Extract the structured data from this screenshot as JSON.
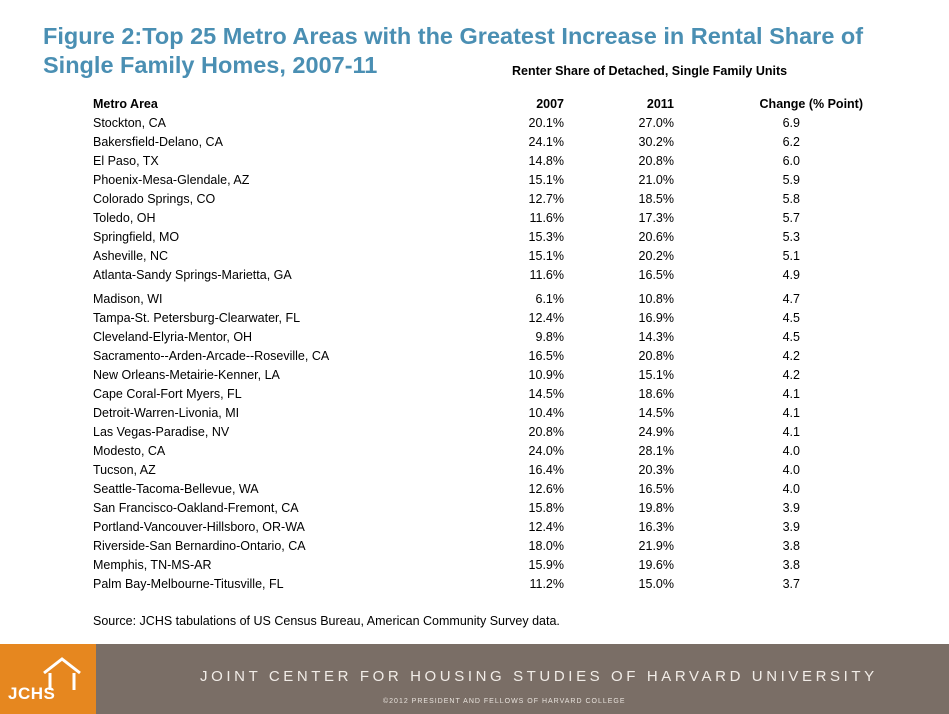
{
  "title": "Figure 2:Top 25 Metro Areas with the Greatest Increase in Rental Share of Single Family Homes, 2007-11",
  "chart_data": {
    "type": "table",
    "subtitle": "Renter Share of Detached, Single Family Units",
    "columns": [
      "Metro Area",
      "2007",
      "2011",
      "Change (% Point)"
    ],
    "rows": [
      [
        "Stockton, CA",
        "20.1%",
        "27.0%",
        "6.9"
      ],
      [
        "Bakersfield-Delano, CA",
        "24.1%",
        "30.2%",
        "6.2"
      ],
      [
        "El Paso, TX",
        "14.8%",
        "20.8%",
        "6.0"
      ],
      [
        "Phoenix-Mesa-Glendale, AZ",
        "15.1%",
        "21.0%",
        "5.9"
      ],
      [
        "Colorado Springs, CO",
        "12.7%",
        "18.5%",
        "5.8"
      ],
      [
        "Toledo, OH",
        "11.6%",
        "17.3%",
        "5.7"
      ],
      [
        "Springfield, MO",
        "15.3%",
        "20.6%",
        "5.3"
      ],
      [
        "Asheville, NC",
        "15.1%",
        "20.2%",
        "5.1"
      ],
      [
        "Atlanta-Sandy Springs-Marietta, GA",
        "11.6%",
        "16.5%",
        "4.9"
      ],
      [
        "Madison, WI",
        "6.1%",
        "10.8%",
        "4.7"
      ],
      [
        "Tampa-St. Petersburg-Clearwater, FL",
        "12.4%",
        "16.9%",
        "4.5"
      ],
      [
        "Cleveland-Elyria-Mentor, OH",
        "9.8%",
        "14.3%",
        "4.5"
      ],
      [
        "Sacramento--Arden-Arcade--Roseville, CA",
        "16.5%",
        "20.8%",
        "4.2"
      ],
      [
        "New Orleans-Metairie-Kenner, LA",
        "10.9%",
        "15.1%",
        "4.2"
      ],
      [
        "Cape Coral-Fort Myers, FL",
        "14.5%",
        "18.6%",
        "4.1"
      ],
      [
        "Detroit-Warren-Livonia, MI",
        "10.4%",
        "14.5%",
        "4.1"
      ],
      [
        "Las Vegas-Paradise, NV",
        "20.8%",
        "24.9%",
        "4.1"
      ],
      [
        "Modesto, CA",
        "24.0%",
        "28.1%",
        "4.0"
      ],
      [
        "Tucson, AZ",
        "16.4%",
        "20.3%",
        "4.0"
      ],
      [
        "Seattle-Tacoma-Bellevue, WA",
        "12.6%",
        "16.5%",
        "4.0"
      ],
      [
        "San Francisco-Oakland-Fremont, CA",
        "15.8%",
        "19.8%",
        "3.9"
      ],
      [
        "Portland-Vancouver-Hillsboro, OR-WA",
        "12.4%",
        "16.3%",
        "3.9"
      ],
      [
        "Riverside-San Bernardino-Ontario, CA",
        "18.0%",
        "21.9%",
        "3.8"
      ],
      [
        "Memphis, TN-MS-AR",
        "15.9%",
        "19.6%",
        "3.8"
      ],
      [
        "Palm Bay-Melbourne-Titusville, FL",
        "11.2%",
        "15.0%",
        "3.7"
      ]
    ]
  },
  "source": "Source: JCHS tabulations of US Census Bureau, American Community Survey data.",
  "footer": {
    "logo_text": "JCHS",
    "organization": "JOINT CENTER FOR HOUSING STUDIES OF HARVARD UNIVERSITY",
    "copyright": "©2012 PRESIDENT AND FELLOWS OF HARVARD COLLEGE"
  },
  "colors": {
    "title": "#4a8fb3",
    "footer_band": "#7a6e66",
    "logo_block": "#e6871f"
  }
}
